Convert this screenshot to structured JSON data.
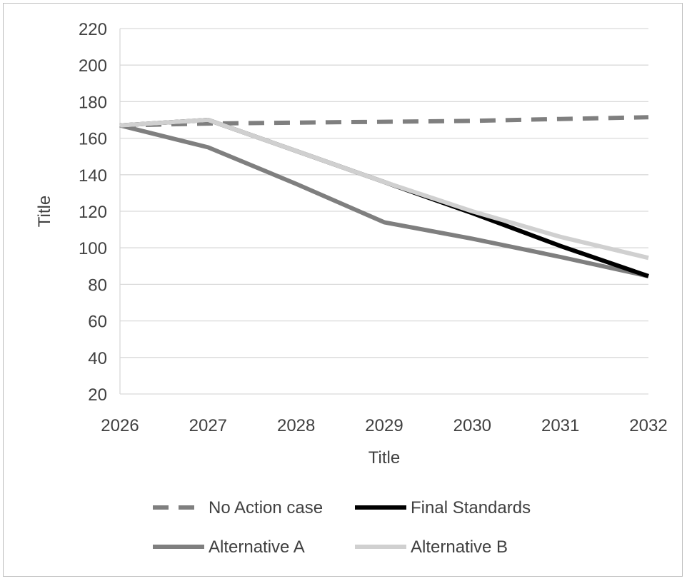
{
  "chart_data": {
    "type": "line",
    "title": "",
    "xlabel": "Title",
    "ylabel": "Title",
    "categories": [
      "2026",
      "2027",
      "2028",
      "2029",
      "2030",
      "2031",
      "2032"
    ],
    "ylim": [
      20,
      220
    ],
    "yticks": [
      20,
      40,
      60,
      80,
      100,
      120,
      140,
      160,
      180,
      200,
      220
    ],
    "grid": true,
    "legend_position": "bottom",
    "series": [
      {
        "name": "No Action case",
        "values": [
          167,
          168,
          168.5,
          169,
          169.5,
          170.5,
          171.5
        ],
        "color": "#7f7f7f",
        "dash": true
      },
      {
        "name": "Final Standards",
        "values": [
          167,
          170,
          153,
          136,
          119,
          101,
          84.5
        ],
        "color": "#000000",
        "dash": false
      },
      {
        "name": "Alternative A",
        "values": [
          167,
          155,
          135,
          114,
          105,
          95,
          84.5
        ],
        "color": "#7f7f7f",
        "dash": false
      },
      {
        "name": "Alternative B",
        "values": [
          167,
          170,
          153,
          136,
          120,
          106,
          94.5
        ],
        "color": "#d0d0d0",
        "dash": false
      }
    ]
  }
}
